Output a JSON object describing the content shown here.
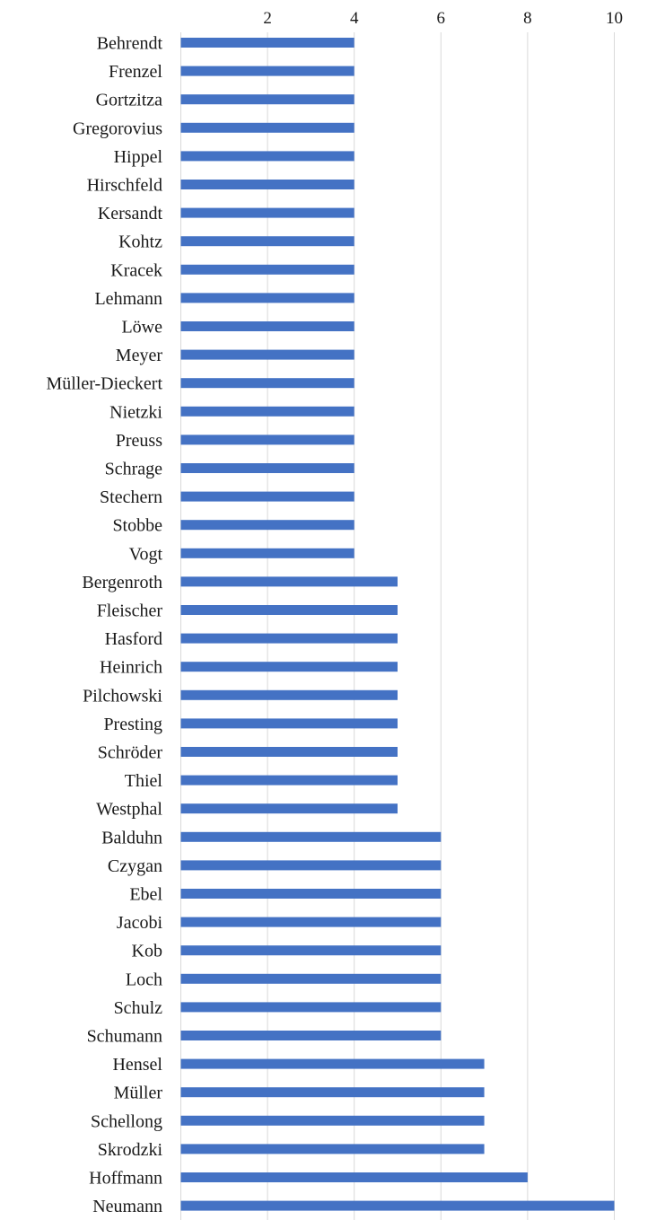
{
  "chart_data": {
    "type": "bar",
    "orientation": "horizontal",
    "categories": [
      "Behrendt",
      "Frenzel",
      "Gortzitza",
      "Gregorovius",
      "Hippel",
      "Hirschfeld",
      "Kersandt",
      "Kohtz",
      "Kracek",
      "Lehmann",
      "Löwe",
      "Meyer",
      "Müller-Dieckert",
      "Nietzki",
      "Preuss",
      "Schrage",
      "Stechern",
      "Stobbe",
      "Vogt",
      "Bergenroth",
      "Fleischer",
      "Hasford",
      "Heinrich",
      "Pilchowski",
      "Presting",
      "Schröder",
      "Thiel",
      "Westphal",
      "Balduhn",
      "Czygan",
      "Ebel",
      "Jacobi",
      "Kob",
      "Loch",
      "Schulz",
      "Schumann",
      "Hensel",
      "Müller",
      "Schellong",
      "Skrodzki",
      "Hoffmann",
      "Neumann"
    ],
    "values": [
      4,
      4,
      4,
      4,
      4,
      4,
      4,
      4,
      4,
      4,
      4,
      4,
      4,
      4,
      4,
      4,
      4,
      4,
      4,
      5,
      5,
      5,
      5,
      5,
      5,
      5,
      5,
      5,
      6,
      6,
      6,
      6,
      6,
      6,
      6,
      6,
      7,
      7,
      7,
      7,
      8,
      10
    ],
    "xlim": [
      0,
      10.5
    ],
    "xticks": [
      2,
      4,
      6,
      8,
      10
    ],
    "xtick_labels": [
      "2",
      "4",
      "6",
      "8",
      "10"
    ],
    "x_axis_position": "top",
    "grid": true,
    "bar_color": "#4472c4",
    "grid_color": "#d9d9d9"
  }
}
